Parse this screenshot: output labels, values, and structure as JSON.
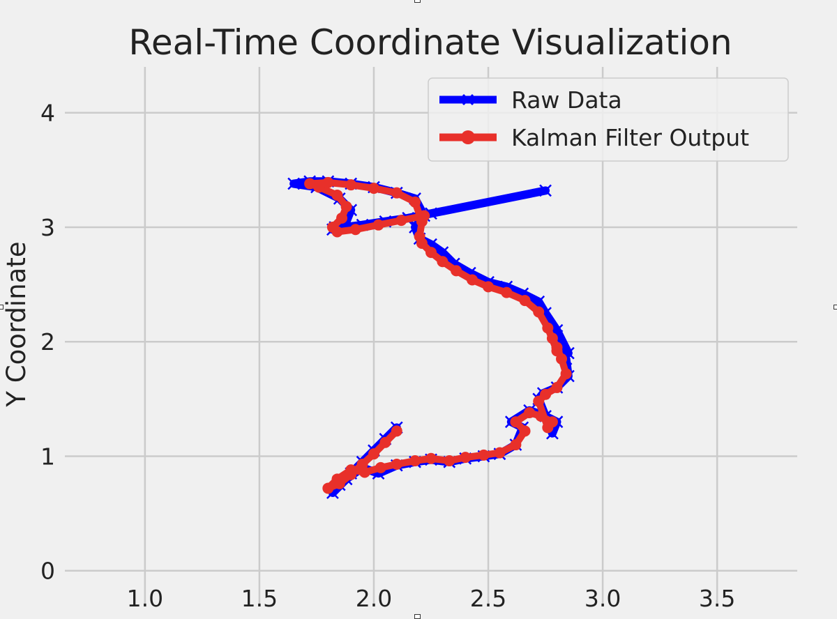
{
  "chart_data": {
    "type": "line",
    "title": "Real-Time Coordinate Visualization",
    "xlabel": "",
    "ylabel": "Y Coordinate",
    "xlim": [
      0.65,
      3.85
    ],
    "ylim": [
      -0.3,
      4.4
    ],
    "xticks": [
      "1.0",
      "1.5",
      "2.0",
      "2.5",
      "3.0",
      "3.5"
    ],
    "xtick_values": [
      1.0,
      1.5,
      2.0,
      2.5,
      3.0,
      3.5
    ],
    "yticks": [
      "0",
      "1",
      "2",
      "3",
      "4"
    ],
    "ytick_values": [
      0,
      1,
      2,
      3,
      4
    ],
    "grid": true,
    "legend_position": "top-right",
    "series": [
      {
        "name": "Raw Data",
        "color": "#0000ff",
        "marker": "x",
        "x": [
          2.1,
          2.05,
          2.0,
          1.95,
          1.9,
          1.85,
          1.82,
          1.88,
          1.95,
          2.02,
          2.1,
          2.18,
          2.25,
          2.33,
          2.4,
          2.48,
          2.55,
          2.62,
          2.65,
          2.6,
          2.68,
          2.75,
          2.8,
          2.78,
          2.72,
          2.74,
          2.8,
          2.85,
          2.84,
          2.82,
          2.8,
          2.85,
          2.8,
          2.75,
          2.72,
          2.65,
          2.58,
          2.5,
          2.42,
          2.35,
          2.3,
          2.25,
          2.2,
          2.18,
          2.22,
          2.18,
          2.1,
          2.0,
          1.9,
          1.8,
          1.72,
          1.65,
          1.75,
          1.85,
          1.9,
          1.88,
          1.83,
          1.82,
          1.87,
          1.95,
          2.05,
          2.15,
          2.25,
          2.75
        ],
        "y": [
          1.25,
          1.15,
          1.05,
          0.95,
          0.85,
          0.75,
          0.68,
          0.8,
          0.9,
          0.85,
          0.92,
          0.95,
          0.97,
          0.95,
          0.98,
          1.0,
          1.02,
          1.1,
          1.25,
          1.3,
          1.4,
          1.35,
          1.3,
          1.2,
          1.5,
          1.55,
          1.6,
          1.7,
          1.85,
          1.95,
          2.05,
          1.9,
          2.1,
          2.25,
          2.35,
          2.42,
          2.48,
          2.52,
          2.6,
          2.68,
          2.78,
          2.85,
          2.9,
          3.0,
          3.1,
          3.25,
          3.3,
          3.35,
          3.38,
          3.4,
          3.4,
          3.38,
          3.35,
          3.25,
          3.15,
          3.05,
          3.0,
          2.98,
          3.0,
          3.02,
          3.05,
          3.08,
          3.12,
          3.32
        ]
      },
      {
        "name": "Kalman Filter Output",
        "color": "#e8302a",
        "marker": "o",
        "x": [
          2.1,
          2.05,
          2.0,
          1.95,
          1.9,
          1.85,
          1.8,
          1.84,
          1.9,
          1.96,
          2.03,
          2.1,
          2.18,
          2.25,
          2.33,
          2.4,
          2.48,
          2.55,
          2.62,
          2.66,
          2.62,
          2.68,
          2.73,
          2.78,
          2.76,
          2.72,
          2.75,
          2.8,
          2.84,
          2.82,
          2.8,
          2.78,
          2.8,
          2.76,
          2.72,
          2.66,
          2.58,
          2.5,
          2.43,
          2.36,
          2.3,
          2.25,
          2.21,
          2.2,
          2.21,
          2.18,
          2.1,
          2.0,
          1.9,
          1.8,
          1.72,
          1.76,
          1.84,
          1.88,
          1.86,
          1.82,
          1.84,
          1.92,
          2.02,
          2.12,
          2.22
        ],
        "y": [
          1.22,
          1.12,
          1.02,
          0.93,
          0.84,
          0.76,
          0.72,
          0.8,
          0.88,
          0.86,
          0.9,
          0.93,
          0.96,
          0.98,
          0.96,
          0.99,
          1.01,
          1.03,
          1.1,
          1.22,
          1.3,
          1.38,
          1.35,
          1.3,
          1.25,
          1.48,
          1.54,
          1.6,
          1.72,
          1.85,
          1.95,
          2.03,
          1.92,
          2.12,
          2.26,
          2.36,
          2.43,
          2.48,
          2.54,
          2.62,
          2.7,
          2.78,
          2.86,
          2.92,
          3.05,
          3.22,
          3.3,
          3.34,
          3.37,
          3.39,
          3.38,
          3.35,
          3.28,
          3.18,
          3.08,
          3.0,
          2.96,
          2.98,
          3.02,
          3.06,
          3.1
        ]
      }
    ]
  }
}
